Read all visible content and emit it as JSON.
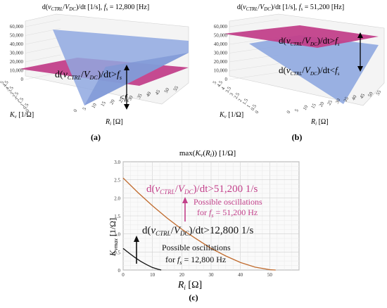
{
  "panel_a": {
    "title": "d(v_CTRL/V_DC)/dt [1/s], f_s = 12,800 [Hz]",
    "title_parts": {
      "pre": "d(",
      "v": "v",
      "ctrl": "CTRL",
      "slash": "/",
      "V": "V",
      "dc": "DC",
      "post": ")/dt [1/s], ",
      "f": "f",
      "s": "s",
      "tail": " = 12,800 [Hz]"
    },
    "z_ticks": [
      "0",
      "10,000",
      "20,000",
      "30,000",
      "40,000",
      "50,000",
      "60,000"
    ],
    "kv_ticks": [
      "5",
      "4.5",
      "4",
      "3.5",
      "3",
      "2.5",
      "2",
      "1.5",
      "1",
      "0.5",
      "0"
    ],
    "ri_ticks": [
      "0",
      "5",
      "10",
      "15",
      "20",
      "25",
      "30",
      "35",
      "40",
      "45",
      "50",
      "55"
    ],
    "kv_label": "K_v [1/Ω]",
    "kv_parts": {
      "k": "K",
      "sub": "v",
      "unit": " [1/Ω]"
    },
    "ri_label": "R_i [Ω]",
    "ri_parts": {
      "r": "R",
      "sub": "i",
      "unit": " [Ω]"
    },
    "annotation_gt": "d(v_CTRL/V_DC)/dt>f_s",
    "annotation_lt": "<f_s",
    "caption": "(a)"
  },
  "panel_b": {
    "title": "d(v_CTRL/V_DC)/dt [1/s], f_s = 51,200 [Hz]",
    "title_parts": {
      "pre": "d(",
      "v": "v",
      "ctrl": "CTRL",
      "slash": "/",
      "V": "V",
      "dc": "DC",
      "post": ")/dt [1/s], ",
      "f": "f",
      "s": "s",
      "tail": " = 51,200 [Hz]"
    },
    "z_ticks": [
      "0",
      "10,000",
      "20,000",
      "30,000",
      "40,000",
      "50,000",
      "60,000"
    ],
    "kv_ticks": [
      "5",
      "4.5",
      "4",
      "3.5",
      "3",
      "2.5",
      "2",
      "1.5",
      "1",
      "0.5",
      "0"
    ],
    "ri_ticks": [
      "0",
      "5",
      "10",
      "15",
      "20",
      "25",
      "30",
      "35",
      "40",
      "45",
      "50",
      "55"
    ],
    "kv_label": "K_v [1/Ω]",
    "kv_parts": {
      "k": "K",
      "sub": "v",
      "unit": " [1/Ω]"
    },
    "ri_label": "R_i [Ω]",
    "ri_parts": {
      "r": "R",
      "sub": "i",
      "unit": " [Ω]"
    },
    "annotation_gt": "d(v_CTRL/V_DC)/dt>f_s",
    "annotation_lt": "d(v_CTRL/V_DC)/dt<f_s",
    "caption": "(b)"
  },
  "panel_c": {
    "title": "max(K_v(R_i)) [1/Ω]",
    "title_parts": {
      "pre": "max(",
      "k": "K",
      "ks": "v",
      "mid": "(",
      "r": "R",
      "rs": "i",
      "post": ")) [1/Ω]"
    },
    "annotation_high": "d(v_CTRL/V_DC)/dt>51,200 1/s",
    "annotation_high_parts": {
      "pre": "d(",
      "v": "v",
      "ctrl": "CTRL",
      "slash": "/",
      "V": "V",
      "dc": "DC",
      "post": ")/dt>51,200 1/s"
    },
    "osc_high_line1": "Possible oscillations",
    "osc_high_line2": "for f_s = 51,200 Hz",
    "osc_high_line2_parts": {
      "pre": "for ",
      "f": "f",
      "s": "s",
      "post": " = 51,200 Hz"
    },
    "annotation_low": "d(v_CTRL/V_DC)/dt>12,800 1/s",
    "annotation_low_parts": {
      "pre": "d(",
      "v": "v",
      "ctrl": "CTRL",
      "slash": "/",
      "V": "V",
      "dc": "DC",
      "post": ")/dt>12,800 1/s"
    },
    "osc_low_line1": "Possible oscillations",
    "osc_low_line2": "for f_s = 12,800 Hz",
    "osc_low_line2_parts": {
      "pre": "for ",
      "f": "f",
      "s": "s",
      "post": " = 12,800 Hz"
    },
    "caption": "(c)"
  },
  "chart_data": [
    {
      "type": "surface",
      "title": "d(v_CTRL/V_DC)/dt [1/s], f_s = 12,800 [Hz]",
      "xlabel": "K_v [1/Ω]",
      "ylabel": "R_i [Ω]",
      "x_range": [
        0,
        5
      ],
      "y_range": [
        0,
        55
      ],
      "zlim": [
        0,
        60000
      ],
      "plane_level": 12800,
      "colors": {
        "plane": "#c2408a",
        "surface": "#8fa8e0"
      }
    },
    {
      "type": "surface",
      "title": "d(v_CTRL/V_DC)/dt [1/s], f_s = 51,200 [Hz]",
      "xlabel": "K_v [1/Ω]",
      "ylabel": "R_i [Ω]",
      "x_range": [
        0,
        5
      ],
      "y_range": [
        0,
        55
      ],
      "zlim": [
        0,
        60000
      ],
      "plane_level": 51200,
      "colors": {
        "plane": "#c2408a",
        "surface": "#8fa8e0"
      }
    },
    {
      "type": "line",
      "title": "max(K_v(R_i)) [1/Ω]",
      "xlabel": "R_i [Ω]",
      "ylabel": "K_vmax [1/Ω]",
      "xlim": [
        0,
        60
      ],
      "ylim": [
        0,
        3
      ],
      "x_ticks": [
        0,
        10,
        20,
        30,
        40,
        50
      ],
      "y_ticks": [
        0,
        0.5,
        1,
        1.5,
        2,
        2.5,
        3
      ],
      "y_tick_labels": [
        "0",
        "0.5",
        "1.0",
        "1.5",
        "2.0",
        "2.5",
        "3.0"
      ],
      "grid": true,
      "series": [
        {
          "color": "#c06a2c",
          "x": [
            0,
            5,
            10,
            15,
            20,
            25,
            30,
            35,
            40,
            45,
            50,
            52
          ],
          "y": [
            2.55,
            2.15,
            1.78,
            1.44,
            1.13,
            0.86,
            0.6,
            0.39,
            0.21,
            0.08,
            0.01,
            0
          ]
        },
        {
          "color": "#111111",
          "x": [
            0,
            2,
            4,
            6,
            8,
            10,
            12,
            13
          ],
          "y": [
            0.6,
            0.47,
            0.35,
            0.24,
            0.15,
            0.07,
            0.02,
            0
          ]
        }
      ]
    }
  ]
}
